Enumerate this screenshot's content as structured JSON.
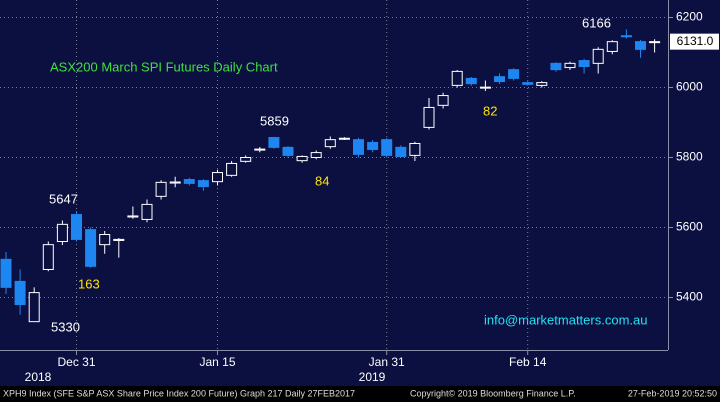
{
  "chart_data": {
    "type": "candlestick",
    "title": "ASX200 March SPI Futures Daily Chart",
    "contact": "info@marketmatters.com.au",
    "categories": [
      null,
      null,
      null,
      null,
      null,
      "Dec 31",
      null,
      null,
      null,
      null,
      null,
      null,
      null,
      null,
      null,
      "Jan 15",
      null,
      null,
      null,
      null,
      null,
      null,
      null,
      null,
      null,
      null,
      null,
      "Jan 31",
      null,
      null,
      null,
      null,
      null,
      null,
      null,
      null,
      null,
      "Feb 14",
      null,
      null,
      null,
      null,
      null,
      null,
      null,
      null,
      null
    ],
    "year_labels": [
      "2018",
      "2019"
    ],
    "open": [
      5509,
      5446,
      5331,
      5480,
      5560,
      5637,
      5594,
      5551,
      5563,
      5630,
      5623,
      5689,
      5727,
      5737,
      5734,
      5731,
      5749,
      5789,
      5822,
      5857,
      5829,
      5791,
      5800,
      5831,
      5853,
      5851,
      5843,
      5851,
      5829,
      5806,
      5886,
      5949,
      6006,
      6026,
      5999,
      6031,
      6051,
      6014,
      6006,
      6069,
      6057,
      6077,
      6069,
      6103,
      6148,
      6131,
      6129
    ],
    "high": [
      5530,
      5480,
      5429,
      5560,
      5620,
      5647,
      5600,
      5590,
      5570,
      5660,
      5680,
      5735,
      5745,
      5742,
      5738,
      5765,
      5790,
      5806,
      5830,
      5859,
      5832,
      5806,
      5820,
      5860,
      5858,
      5856,
      5850,
      5856,
      5835,
      5845,
      5970,
      5985,
      6050,
      6030,
      6020,
      6040,
      6055,
      6018,
      6018,
      6072,
      6074,
      6082,
      6115,
      6135,
      6166,
      6136,
      6138
    ],
    "low": [
      5410,
      5351,
      5330,
      5475,
      5550,
      5560,
      5485,
      5525,
      5514,
      5625,
      5615,
      5680,
      5715,
      5720,
      5705,
      5720,
      5745,
      5785,
      5815,
      5825,
      5800,
      5785,
      5795,
      5825,
      5850,
      5800,
      5815,
      5800,
      5800,
      5790,
      5880,
      5940,
      6000,
      6005,
      5990,
      6010,
      6020,
      6005,
      6000,
      6045,
      6050,
      6040,
      6040,
      6095,
      6140,
      6085,
      6100
    ],
    "close": [
      5429,
      5380,
      5414,
      5551,
      5609,
      5566,
      5489,
      5580,
      5566,
      5633,
      5666,
      5729,
      5730,
      5726,
      5717,
      5757,
      5783,
      5800,
      5824,
      5829,
      5806,
      5803,
      5814,
      5851,
      5855,
      5809,
      5823,
      5806,
      5803,
      5840,
      5943,
      5977,
      6046,
      6011,
      6001,
      6017,
      6026,
      6009,
      6014,
      6051,
      6069,
      6060,
      6109,
      6131,
      6145,
      6109,
      6131
    ],
    "up_color": "#ffffff",
    "down_color": "#1e86f0",
    "ylim": [
      5250,
      6250
    ],
    "yticks": [
      5400,
      5600,
      5800,
      6000,
      6200
    ],
    "grid": true,
    "last_price": {
      "value": 6131,
      "label": "6131.0"
    },
    "annotations": [
      "5647",
      "163",
      "5330",
      "5859",
      "84",
      "82",
      "6166"
    ]
  },
  "footer": {
    "left": "XPH9 Index (SFE S&P ASX Share Price Index 200 Future) Graph 217  Daily 27FEB2017",
    "center": "Copyright© 2019 Bloomberg Finance L.P.",
    "right": "27-Feb-2019 20:52:50"
  }
}
